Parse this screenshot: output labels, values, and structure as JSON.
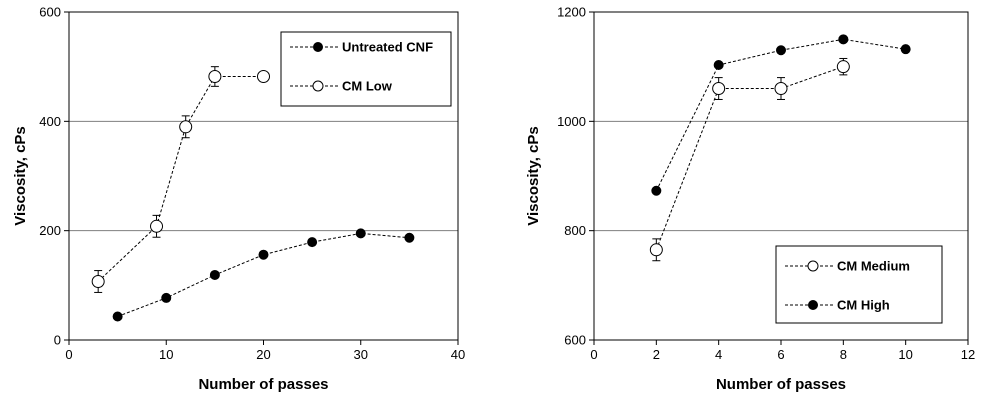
{
  "chart_data": [
    {
      "type": "line",
      "xlabel": "Number of passes",
      "ylabel": "Viscosity, cPs",
      "xlim": [
        0,
        40
      ],
      "ylim": [
        0,
        600
      ],
      "xticks": [
        0,
        10,
        20,
        30,
        40
      ],
      "yticks": [
        0,
        200,
        400,
        600
      ],
      "grid": "horizontal",
      "legend": "top-right",
      "series": [
        {
          "name": "Untreated CNF",
          "marker": "filled-circle",
          "x": [
            5,
            10,
            15,
            20,
            25,
            30,
            35
          ],
          "y": [
            43,
            77,
            119,
            156,
            179,
            195,
            187
          ],
          "err": [
            0,
            0,
            0,
            0,
            0,
            0,
            0
          ]
        },
        {
          "name": "CM Low",
          "marker": "open-circle",
          "x": [
            3,
            9,
            12,
            15,
            20
          ],
          "y": [
            107,
            208,
            390,
            482,
            482
          ],
          "err": [
            20,
            20,
            20,
            18,
            0
          ]
        }
      ]
    },
    {
      "type": "line",
      "xlabel": "Number of passes",
      "ylabel": "Viscosity, cPs",
      "xlim": [
        0,
        12
      ],
      "ylim": [
        600,
        1200
      ],
      "xticks": [
        0,
        2,
        4,
        6,
        8,
        10,
        12
      ],
      "yticks": [
        600,
        800,
        1000,
        1200
      ],
      "grid": "horizontal",
      "legend": "bottom-right",
      "series": [
        {
          "name": "CM Medium",
          "marker": "open-circle",
          "x": [
            2,
            4,
            6,
            8
          ],
          "y": [
            765,
            1060,
            1060,
            1100
          ],
          "err": [
            20,
            20,
            20,
            15
          ]
        },
        {
          "name": "CM High",
          "marker": "filled-circle",
          "x": [
            2,
            4,
            6,
            8,
            10
          ],
          "y": [
            873,
            1103,
            1130,
            1150,
            1132
          ],
          "err": [
            0,
            0,
            0,
            0,
            0
          ]
        }
      ]
    }
  ]
}
